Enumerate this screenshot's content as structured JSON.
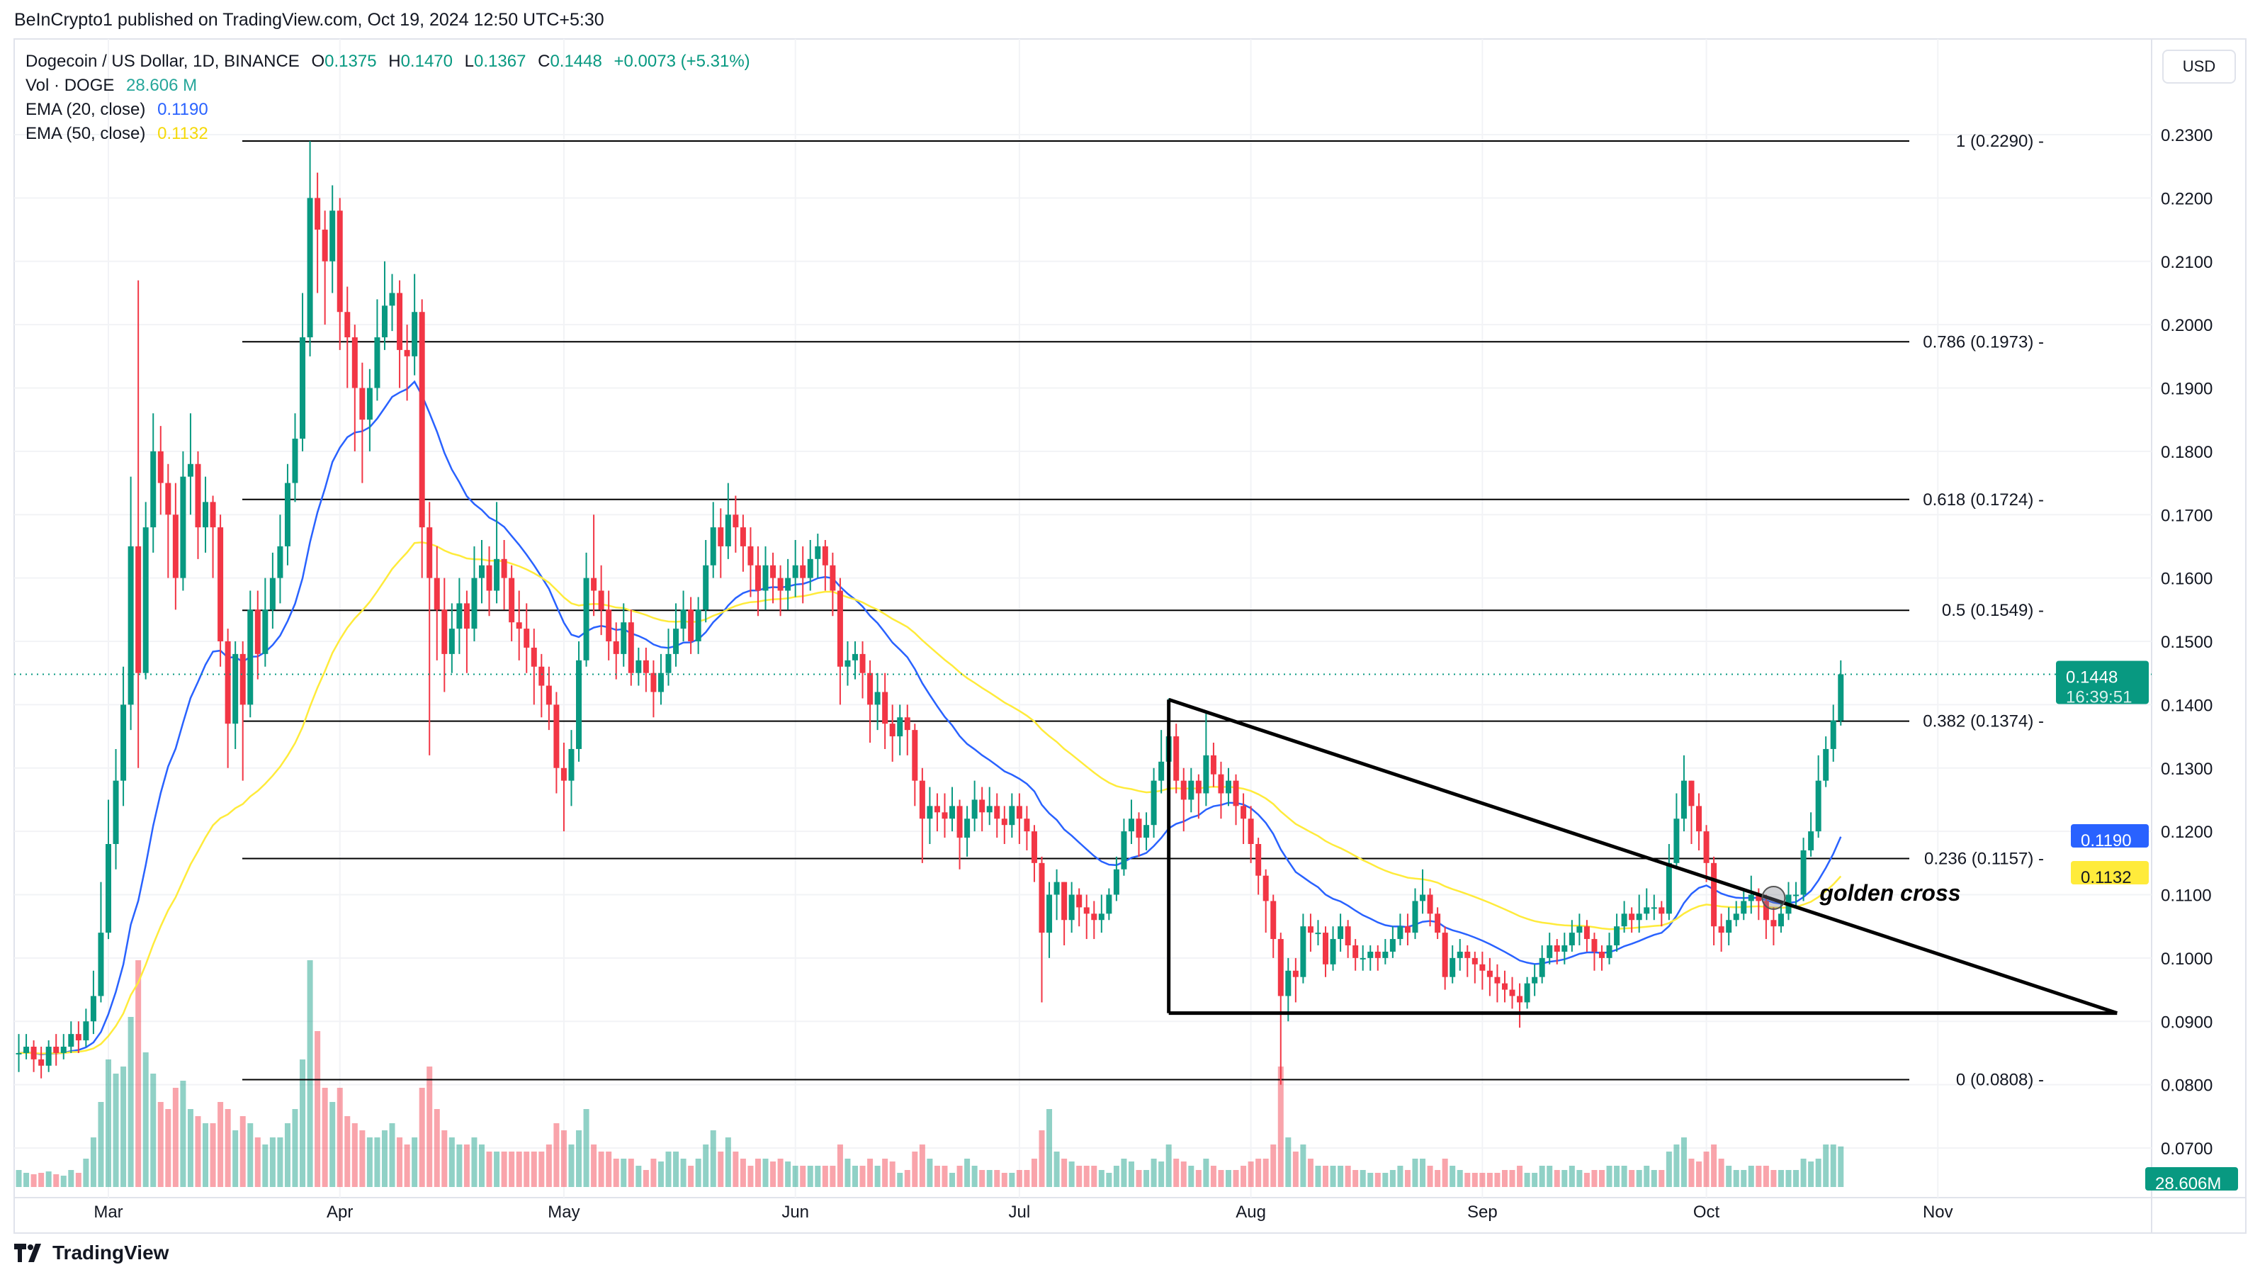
{
  "header": {
    "published": "BeInCrypto1 published on TradingView.com, Oct 19, 2024 12:50 UTC+5:30",
    "symbol": "Dogecoin / US Dollar, 1D, BINANCE",
    "o_label": "O",
    "o": "0.1375",
    "h_label": "H",
    "h": "0.1470",
    "l_label": "L",
    "l": "0.1367",
    "c_label": "C",
    "c": "0.1448",
    "change": "+0.0073 (+5.31%)",
    "vol_label": "Vol · DOGE",
    "vol": "28.606 M",
    "ema20_label": "EMA (20, close)",
    "ema20": "0.1190",
    "ema50_label": "EMA (50, close)",
    "ema50": "0.1132"
  },
  "currency_button": "USD",
  "branding": "TradingView",
  "colors": {
    "up": "#089981",
    "down": "#f23645",
    "ema20": "#2962ff",
    "ema50": "#ffeb3b",
    "fib": "#000000"
  },
  "chart_data": {
    "type": "candlestick",
    "title": "Dogecoin / US Dollar, 1D, BINANCE",
    "x_ticks": [
      "Mar",
      "Apr",
      "May",
      "Jun",
      "Jul",
      "Aug",
      "Sep",
      "Oct",
      "Nov"
    ],
    "y_ticks": [
      "0.0700",
      "0.0800",
      "0.0900",
      "0.1000",
      "0.1100",
      "0.1200",
      "0.1300",
      "0.1400",
      "0.1500",
      "0.1600",
      "0.1700",
      "0.1800",
      "0.1900",
      "0.2000",
      "0.2100",
      "0.2200",
      "0.2300"
    ],
    "ylim": [
      0.07,
      0.23
    ],
    "grid": true,
    "date_range": [
      "2024-02-18",
      "2024-10-19"
    ],
    "closes": [
      0.085,
      0.086,
      0.084,
      0.083,
      0.086,
      0.085,
      0.086,
      0.088,
      0.087,
      0.09,
      0.094,
      0.104,
      0.118,
      0.128,
      0.14,
      0.165,
      0.145,
      0.168,
      0.18,
      0.175,
      0.17,
      0.16,
      0.176,
      0.178,
      0.168,
      0.172,
      0.168,
      0.15,
      0.137,
      0.148,
      0.14,
      0.155,
      0.148,
      0.155,
      0.16,
      0.165,
      0.175,
      0.182,
      0.198,
      0.22,
      0.215,
      0.21,
      0.218,
      0.202,
      0.198,
      0.19,
      0.185,
      0.19,
      0.198,
      0.203,
      0.205,
      0.196,
      0.195,
      0.202,
      0.168,
      0.16,
      0.155,
      0.148,
      0.152,
      0.156,
      0.152,
      0.16,
      0.162,
      0.158,
      0.163,
      0.16,
      0.153,
      0.152,
      0.149,
      0.146,
      0.143,
      0.14,
      0.13,
      0.128,
      0.133,
      0.147,
      0.16,
      0.158,
      0.155,
      0.15,
      0.148,
      0.153,
      0.145,
      0.147,
      0.145,
      0.142,
      0.145,
      0.148,
      0.152,
      0.155,
      0.15,
      0.155,
      0.162,
      0.168,
      0.165,
      0.17,
      0.168,
      0.165,
      0.162,
      0.158,
      0.162,
      0.16,
      0.158,
      0.16,
      0.162,
      0.16,
      0.163,
      0.165,
      0.162,
      0.158,
      0.146,
      0.147,
      0.148,
      0.145,
      0.14,
      0.142,
      0.137,
      0.135,
      0.138,
      0.136,
      0.128,
      0.122,
      0.124,
      0.123,
      0.122,
      0.124,
      0.119,
      0.122,
      0.125,
      0.123,
      0.124,
      0.122,
      0.121,
      0.124,
      0.122,
      0.12,
      0.115,
      0.104,
      0.11,
      0.112,
      0.106,
      0.11,
      0.108,
      0.107,
      0.106,
      0.107,
      0.11,
      0.114,
      0.12,
      0.122,
      0.119,
      0.121,
      0.128,
      0.131,
      0.135,
      0.128,
      0.125,
      0.128,
      0.126,
      0.132,
      0.129,
      0.126,
      0.128,
      0.124,
      0.122,
      0.118,
      0.113,
      0.109,
      0.103,
      0.094,
      0.098,
      0.097,
      0.105,
      0.104,
      0.104,
      0.099,
      0.103,
      0.105,
      0.102,
      0.1,
      0.1,
      0.101,
      0.1,
      0.101,
      0.103,
      0.105,
      0.104,
      0.109,
      0.11,
      0.107,
      0.104,
      0.097,
      0.1,
      0.101,
      0.1,
      0.099,
      0.098,
      0.097,
      0.096,
      0.095,
      0.094,
      0.093,
      0.096,
      0.097,
      0.1,
      0.102,
      0.101,
      0.102,
      0.104,
      0.105,
      0.103,
      0.101,
      0.1,
      0.102,
      0.105,
      0.107,
      0.106,
      0.107,
      0.108,
      0.108,
      0.107,
      0.115,
      0.122,
      0.128,
      0.124,
      0.12,
      0.115,
      0.105,
      0.104,
      0.106,
      0.107,
      0.109,
      0.11,
      0.109,
      0.106,
      0.105,
      0.107,
      0.11,
      0.11,
      0.117,
      0.12,
      0.128,
      0.133,
      0.1375,
      0.1448
    ],
    "highs": [
      0.088,
      0.088,
      0.087,
      0.086,
      0.087,
      0.088,
      0.088,
      0.09,
      0.09,
      0.092,
      0.098,
      0.112,
      0.125,
      0.133,
      0.146,
      0.176,
      0.207,
      0.172,
      0.186,
      0.184,
      0.178,
      0.175,
      0.18,
      0.186,
      0.18,
      0.176,
      0.173,
      0.17,
      0.152,
      0.15,
      0.15,
      0.158,
      0.158,
      0.16,
      0.164,
      0.17,
      0.178,
      0.186,
      0.205,
      0.229,
      0.224,
      0.218,
      0.222,
      0.22,
      0.206,
      0.2,
      0.194,
      0.193,
      0.204,
      0.21,
      0.208,
      0.207,
      0.2,
      0.208,
      0.204,
      0.172,
      0.165,
      0.16,
      0.156,
      0.16,
      0.158,
      0.165,
      0.166,
      0.165,
      0.172,
      0.166,
      0.162,
      0.158,
      0.156,
      0.152,
      0.148,
      0.146,
      0.142,
      0.134,
      0.136,
      0.15,
      0.164,
      0.17,
      0.162,
      0.158,
      0.153,
      0.156,
      0.155,
      0.149,
      0.149,
      0.147,
      0.148,
      0.152,
      0.156,
      0.158,
      0.157,
      0.157,
      0.166,
      0.172,
      0.171,
      0.175,
      0.173,
      0.17,
      0.168,
      0.165,
      0.165,
      0.164,
      0.162,
      0.163,
      0.166,
      0.165,
      0.166,
      0.167,
      0.166,
      0.164,
      0.16,
      0.15,
      0.15,
      0.15,
      0.147,
      0.145,
      0.145,
      0.14,
      0.14,
      0.14,
      0.137,
      0.13,
      0.127,
      0.126,
      0.126,
      0.127,
      0.125,
      0.124,
      0.128,
      0.127,
      0.127,
      0.126,
      0.124,
      0.126,
      0.126,
      0.124,
      0.121,
      0.116,
      0.112,
      0.114,
      0.112,
      0.112,
      0.111,
      0.11,
      0.109,
      0.11,
      0.111,
      0.116,
      0.122,
      0.125,
      0.123,
      0.123,
      0.13,
      0.136,
      0.141,
      0.137,
      0.13,
      0.13,
      0.129,
      0.139,
      0.134,
      0.131,
      0.13,
      0.129,
      0.126,
      0.124,
      0.119,
      0.114,
      0.11,
      0.104,
      0.1,
      0.1,
      0.107,
      0.107,
      0.106,
      0.105,
      0.105,
      0.107,
      0.106,
      0.103,
      0.102,
      0.102,
      0.102,
      0.103,
      0.105,
      0.107,
      0.107,
      0.111,
      0.114,
      0.111,
      0.108,
      0.105,
      0.102,
      0.103,
      0.102,
      0.101,
      0.101,
      0.1,
      0.099,
      0.098,
      0.097,
      0.096,
      0.097,
      0.099,
      0.102,
      0.104,
      0.103,
      0.104,
      0.106,
      0.107,
      0.106,
      0.104,
      0.102,
      0.104,
      0.107,
      0.109,
      0.108,
      0.11,
      0.111,
      0.11,
      0.109,
      0.118,
      0.126,
      0.132,
      0.128,
      0.126,
      0.121,
      0.116,
      0.107,
      0.108,
      0.109,
      0.111,
      0.113,
      0.111,
      0.11,
      0.108,
      0.109,
      0.112,
      0.112,
      0.119,
      0.123,
      0.132,
      0.135,
      0.14,
      0.147
    ],
    "lows": [
      0.082,
      0.084,
      0.082,
      0.081,
      0.082,
      0.083,
      0.084,
      0.085,
      0.085,
      0.086,
      0.088,
      0.093,
      0.103,
      0.114,
      0.124,
      0.136,
      0.13,
      0.144,
      0.164,
      0.17,
      0.16,
      0.155,
      0.158,
      0.17,
      0.163,
      0.164,
      0.16,
      0.146,
      0.13,
      0.133,
      0.128,
      0.138,
      0.144,
      0.146,
      0.152,
      0.156,
      0.162,
      0.172,
      0.18,
      0.195,
      0.205,
      0.2,
      0.205,
      0.196,
      0.19,
      0.18,
      0.175,
      0.18,
      0.188,
      0.196,
      0.199,
      0.19,
      0.188,
      0.192,
      0.16,
      0.132,
      0.147,
      0.142,
      0.145,
      0.148,
      0.145,
      0.15,
      0.156,
      0.154,
      0.156,
      0.155,
      0.15,
      0.147,
      0.145,
      0.14,
      0.138,
      0.136,
      0.126,
      0.12,
      0.124,
      0.131,
      0.146,
      0.154,
      0.151,
      0.147,
      0.144,
      0.146,
      0.143,
      0.143,
      0.142,
      0.138,
      0.14,
      0.143,
      0.146,
      0.15,
      0.148,
      0.148,
      0.153,
      0.16,
      0.16,
      0.163,
      0.164,
      0.161,
      0.157,
      0.154,
      0.155,
      0.156,
      0.154,
      0.155,
      0.157,
      0.156,
      0.158,
      0.16,
      0.158,
      0.154,
      0.14,
      0.143,
      0.144,
      0.141,
      0.134,
      0.136,
      0.133,
      0.131,
      0.132,
      0.132,
      0.124,
      0.115,
      0.118,
      0.12,
      0.119,
      0.12,
      0.114,
      0.116,
      0.12,
      0.12,
      0.121,
      0.119,
      0.118,
      0.119,
      0.118,
      0.117,
      0.112,
      0.093,
      0.1,
      0.106,
      0.102,
      0.104,
      0.105,
      0.103,
      0.103,
      0.104,
      0.106,
      0.109,
      0.113,
      0.118,
      0.116,
      0.117,
      0.119,
      0.126,
      0.128,
      0.126,
      0.12,
      0.123,
      0.122,
      0.124,
      0.127,
      0.122,
      0.124,
      0.121,
      0.118,
      0.115,
      0.11,
      0.104,
      0.1,
      0.08,
      0.09,
      0.093,
      0.096,
      0.101,
      0.102,
      0.097,
      0.098,
      0.101,
      0.1,
      0.098,
      0.098,
      0.098,
      0.098,
      0.099,
      0.1,
      0.102,
      0.102,
      0.103,
      0.107,
      0.105,
      0.103,
      0.095,
      0.096,
      0.098,
      0.097,
      0.096,
      0.095,
      0.094,
      0.093,
      0.093,
      0.092,
      0.089,
      0.092,
      0.094,
      0.096,
      0.099,
      0.099,
      0.099,
      0.101,
      0.102,
      0.101,
      0.098,
      0.098,
      0.099,
      0.101,
      0.104,
      0.104,
      0.104,
      0.106,
      0.106,
      0.105,
      0.106,
      0.114,
      0.12,
      0.118,
      0.117,
      0.112,
      0.102,
      0.101,
      0.102,
      0.105,
      0.106,
      0.107,
      0.106,
      0.103,
      0.102,
      0.104,
      0.106,
      0.108,
      0.109,
      0.116,
      0.119,
      0.127,
      0.131,
      0.1367
    ],
    "volumes_millions": [
      12,
      10,
      9,
      10,
      11,
      9,
      8,
      12,
      10,
      20,
      35,
      60,
      90,
      80,
      85,
      120,
      160,
      95,
      80,
      60,
      55,
      70,
      75,
      55,
      50,
      45,
      45,
      60,
      55,
      40,
      50,
      45,
      35,
      30,
      35,
      35,
      45,
      55,
      90,
      160,
      110,
      70,
      60,
      70,
      50,
      45,
      40,
      35,
      35,
      40,
      45,
      35,
      30,
      35,
      70,
      85,
      55,
      40,
      35,
      30,
      30,
      35,
      30,
      25,
      25,
      25,
      25,
      25,
      25,
      25,
      25,
      30,
      45,
      40,
      30,
      40,
      55,
      30,
      25,
      25,
      20,
      20,
      20,
      15,
      12,
      20,
      18,
      25,
      25,
      20,
      15,
      20,
      30,
      40,
      25,
      35,
      25,
      20,
      15,
      20,
      20,
      18,
      20,
      18,
      15,
      15,
      15,
      15,
      15,
      15,
      30,
      20,
      15,
      15,
      20,
      15,
      20,
      18,
      10,
      12,
      25,
      30,
      20,
      15,
      15,
      10,
      15,
      20,
      15,
      12,
      12,
      12,
      10,
      10,
      12,
      12,
      20,
      40,
      55,
      25,
      20,
      18,
      15,
      15,
      15,
      12,
      10,
      15,
      20,
      18,
      12,
      12,
      20,
      18,
      30,
      20,
      18,
      15,
      12,
      20,
      15,
      12,
      12,
      12,
      15,
      18,
      20,
      20,
      30,
      85,
      35,
      25,
      30,
      20,
      15,
      15,
      15,
      15,
      15,
      12,
      12,
      10,
      10,
      10,
      12,
      15,
      12,
      20,
      20,
      15,
      12,
      20,
      15,
      12,
      10,
      10,
      10,
      10,
      10,
      12,
      12,
      15,
      10,
      10,
      15,
      15,
      12,
      12,
      15,
      12,
      10,
      12,
      12,
      15,
      15,
      15,
      12,
      12,
      15,
      12,
      12,
      25,
      30,
      35,
      20,
      18,
      25,
      30,
      20,
      15,
      12,
      12,
      15,
      15,
      15,
      12,
      12,
      12,
      12,
      20,
      18,
      20,
      30,
      30,
      28.606
    ],
    "series": [
      {
        "name": "EMA (20, close)",
        "last": 0.119
      },
      {
        "name": "EMA (50, close)",
        "last": 0.1132
      }
    ],
    "fib_levels": [
      {
        "ratio": 1,
        "price": 0.229,
        "label": "1 (0.2290)"
      },
      {
        "ratio": 0.786,
        "price": 0.1973,
        "label": "0.786 (0.1973)"
      },
      {
        "ratio": 0.618,
        "price": 0.1724,
        "label": "0.618 (0.1724)"
      },
      {
        "ratio": 0.5,
        "price": 0.1549,
        "label": "0.5 (0.1549)"
      },
      {
        "ratio": 0.382,
        "price": 0.1374,
        "label": "0.382 (0.1374)"
      },
      {
        "ratio": 0.236,
        "price": 0.1157,
        "label": "0.236 (0.1157)"
      },
      {
        "ratio": 0,
        "price": 0.0808,
        "label": "0 (0.0808)"
      }
    ],
    "triangle": {
      "apex_date": "2024-07-21",
      "top_price": 0.1408,
      "base_price": 0.0913,
      "end_date": "2024-11-25"
    },
    "annotation": {
      "text": "golden cross",
      "date": "2024-10-10",
      "price": 0.1095
    },
    "price_labels": {
      "last": "0.1448",
      "countdown": "16:39:51",
      "ema20": "0.1190",
      "ema50": "0.1132",
      "volume": "28.606M"
    }
  }
}
